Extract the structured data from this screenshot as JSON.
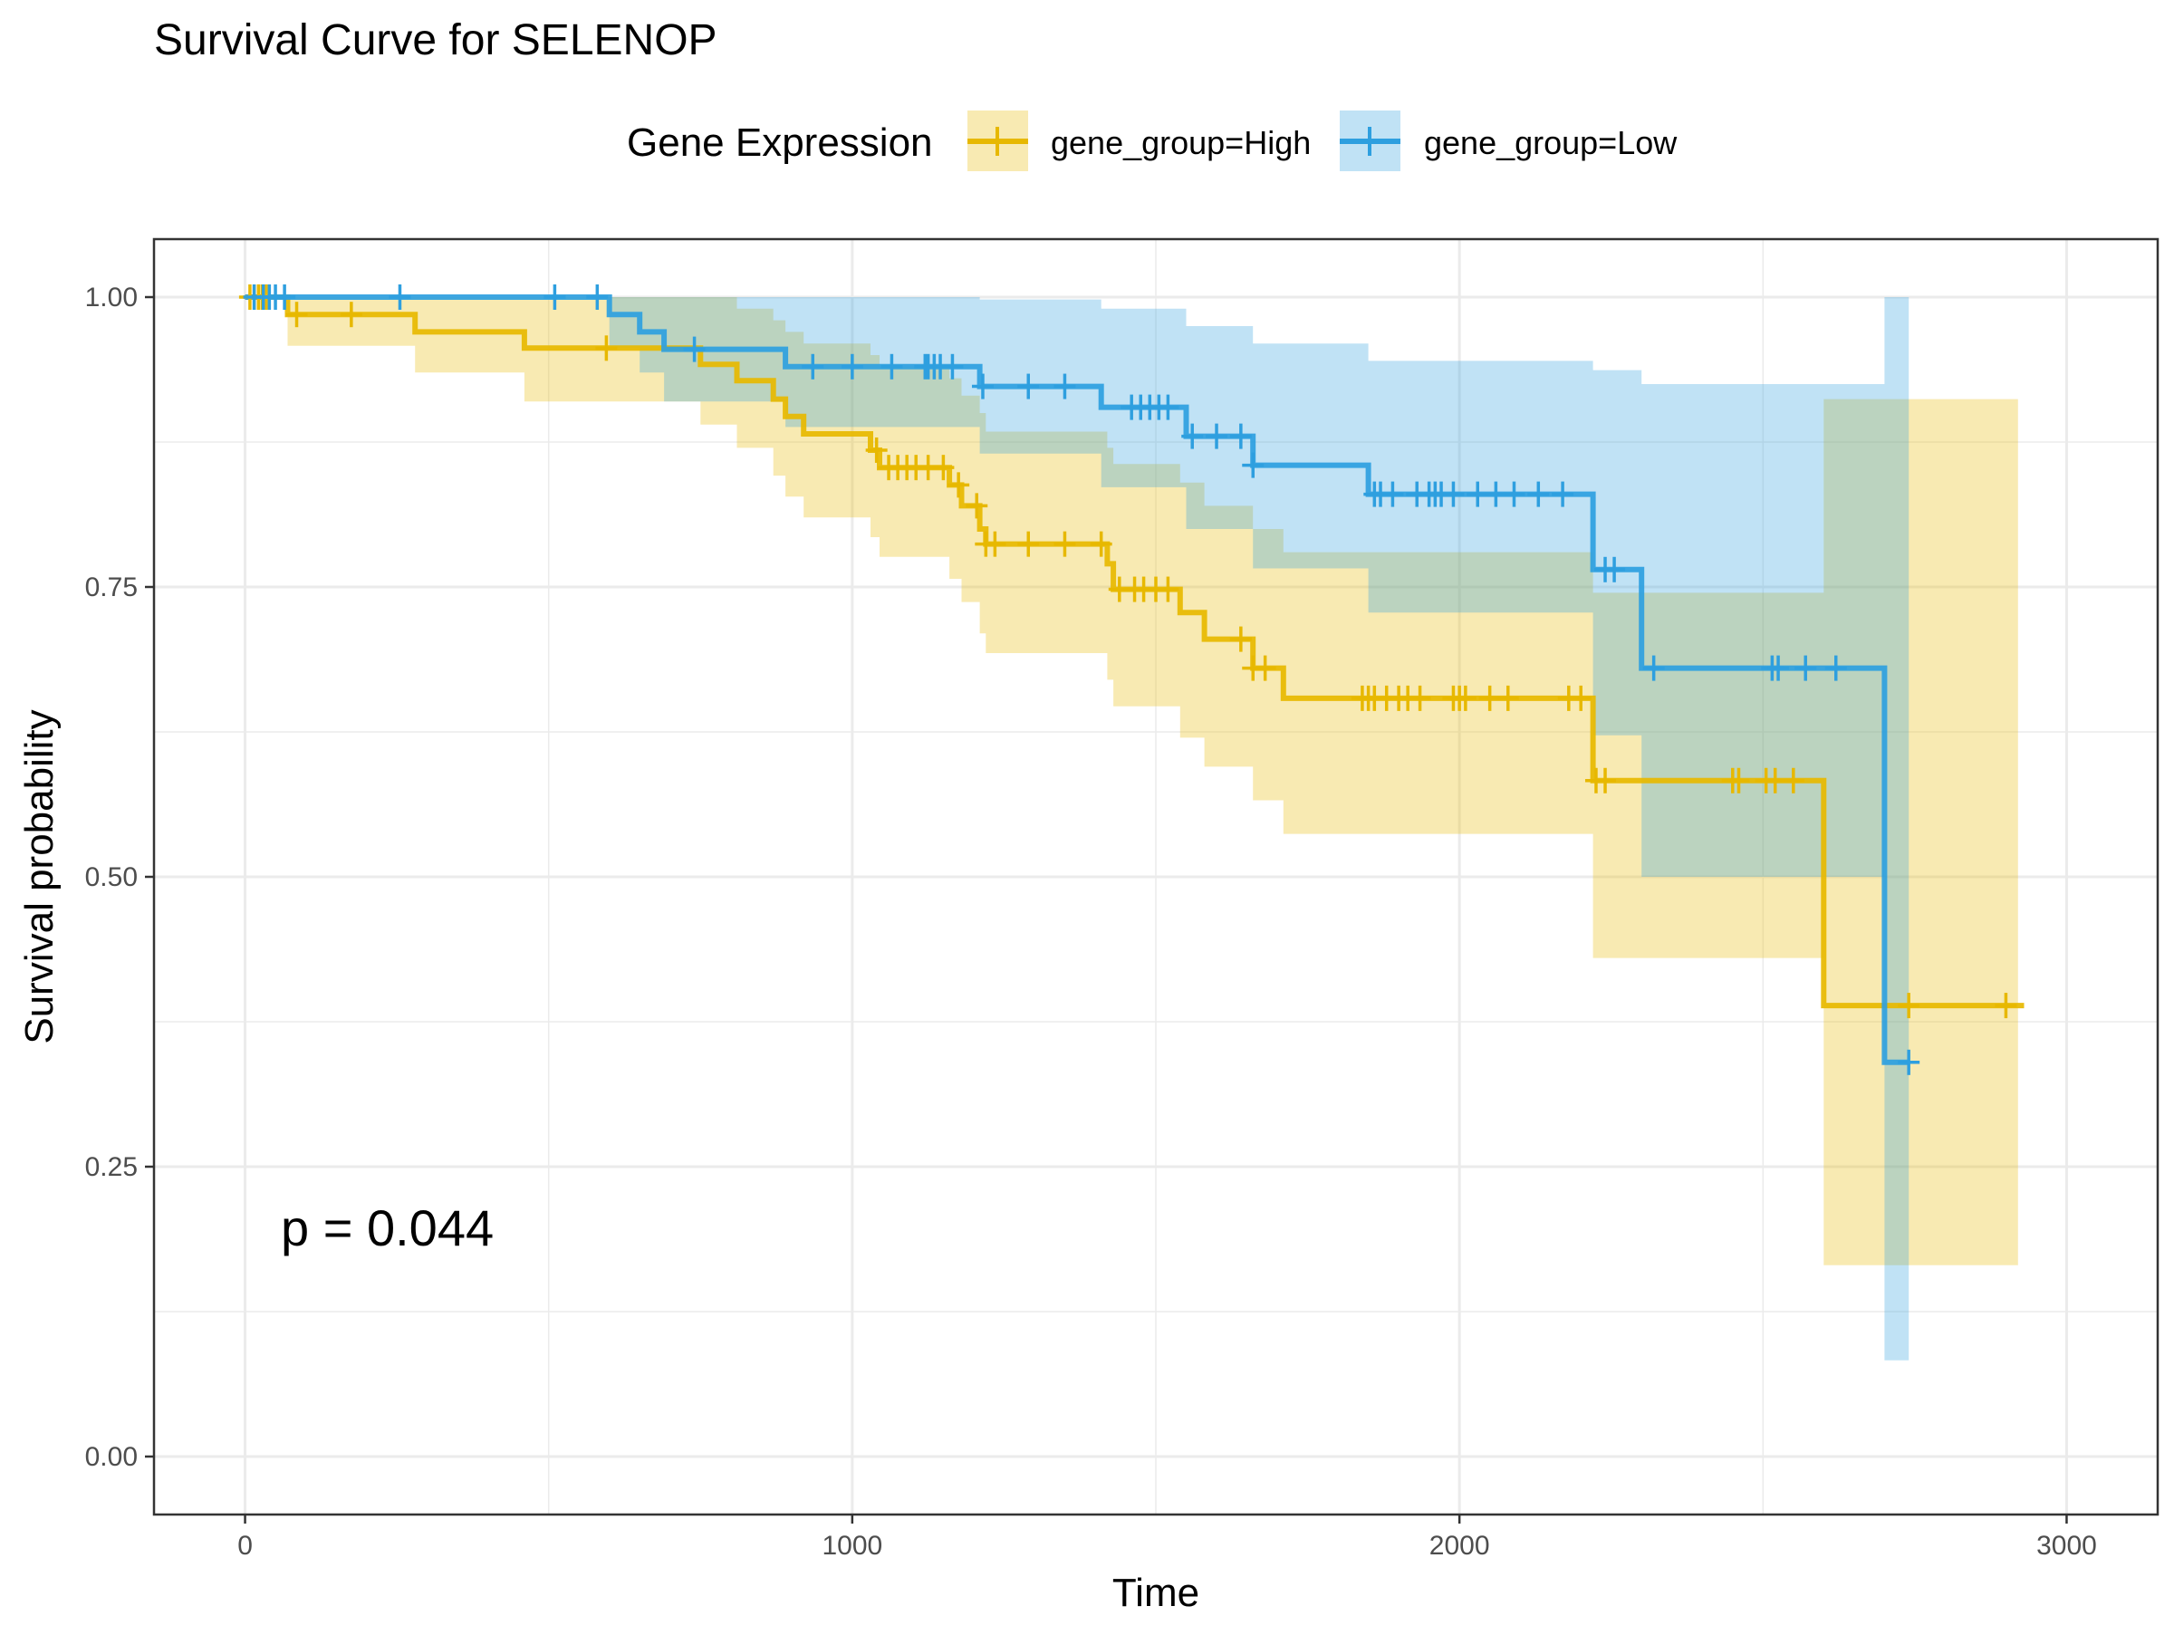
{
  "chart_data": {
    "type": "line",
    "title": "Survival Curve for SELENOP",
    "xlabel": "Time",
    "ylabel": "Survival probability",
    "xlim": [
      -150,
      3150
    ],
    "ylim": [
      -0.05,
      1.05
    ],
    "x_ticks": [
      0,
      1000,
      2000,
      3000
    ],
    "x_tick_labels": [
      "0",
      "1000",
      "2000",
      "3000"
    ],
    "y_ticks": [
      0,
      0.25,
      0.5,
      0.75,
      1
    ],
    "y_tick_labels": [
      "0.00",
      "0.25",
      "0.50",
      "0.75",
      "1.00"
    ],
    "grid": true,
    "legend": {
      "title": "Gene Expression",
      "placement": "top",
      "entries": [
        "gene_group=High",
        "gene_group=Low"
      ]
    },
    "annotation": "p = 0.044",
    "colors": {
      "High": "#E7B800",
      "Low": "#2E9FDF"
    },
    "series": [
      {
        "name": "gene_group=High",
        "color": "#E7B800",
        "steps": [
          [
            0,
            1.0
          ],
          [
            70,
            0.985
          ],
          [
            280,
            0.97
          ],
          [
            460,
            0.956
          ],
          [
            680,
            0.956
          ],
          [
            750,
            0.942
          ],
          [
            810,
            0.928
          ],
          [
            870,
            0.912
          ],
          [
            890,
            0.897
          ],
          [
            920,
            0.882
          ],
          [
            1030,
            0.868
          ],
          [
            1045,
            0.853
          ],
          [
            1160,
            0.838
          ],
          [
            1180,
            0.82
          ],
          [
            1210,
            0.8
          ],
          [
            1220,
            0.787
          ],
          [
            1420,
            0.77
          ],
          [
            1430,
            0.748
          ],
          [
            1540,
            0.728
          ],
          [
            1580,
            0.705
          ],
          [
            1660,
            0.68
          ],
          [
            1710,
            0.654
          ],
          [
            2220,
            0.583
          ],
          [
            2600,
            0.389
          ],
          [
            2930,
            0.389
          ]
        ],
        "ci_steps": [
          [
            0,
            1.0,
            1.0
          ],
          [
            70,
            0.958,
            1.0
          ],
          [
            280,
            0.935,
            1.0
          ],
          [
            460,
            0.91,
            1.0
          ],
          [
            680,
            0.91,
            1.0
          ],
          [
            750,
            0.89,
            1.0
          ],
          [
            810,
            0.87,
            0.99
          ],
          [
            870,
            0.846,
            0.98
          ],
          [
            890,
            0.828,
            0.97
          ],
          [
            920,
            0.81,
            0.96
          ],
          [
            1030,
            0.793,
            0.95
          ],
          [
            1045,
            0.776,
            0.94
          ],
          [
            1160,
            0.757,
            0.93
          ],
          [
            1180,
            0.737,
            0.915
          ],
          [
            1210,
            0.71,
            0.9
          ],
          [
            1220,
            0.693,
            0.884
          ],
          [
            1420,
            0.67,
            0.87
          ],
          [
            1430,
            0.647,
            0.856
          ],
          [
            1540,
            0.62,
            0.84
          ],
          [
            1580,
            0.595,
            0.82
          ],
          [
            1660,
            0.566,
            0.8
          ],
          [
            1710,
            0.537,
            0.78
          ],
          [
            2220,
            0.43,
            0.745
          ],
          [
            2600,
            0.165,
            0.912
          ],
          [
            2920,
            0.165,
            0.912
          ]
        ],
        "censor_times": [
          8,
          15,
          22,
          28,
          35,
          85,
          175,
          595,
          1040,
          1060,
          1075,
          1090,
          1105,
          1125,
          1150,
          1175,
          1205,
          1220,
          1235,
          1290,
          1350,
          1410,
          1440,
          1465,
          1480,
          1500,
          1520,
          1640,
          1660,
          1680,
          1840,
          1850,
          1860,
          1880,
          1900,
          1915,
          1935,
          1990,
          2000,
          2010,
          2050,
          2080,
          2180,
          2200,
          2225,
          2240,
          2450,
          2460,
          2505,
          2520,
          2550,
          2740,
          2900
        ]
      },
      {
        "name": "gene_group=Low",
        "color": "#2E9FDF",
        "steps": [
          [
            0,
            1.0
          ],
          [
            600,
            0.985
          ],
          [
            650,
            0.97
          ],
          [
            690,
            0.955
          ],
          [
            890,
            0.94
          ],
          [
            1210,
            0.923
          ],
          [
            1410,
            0.905
          ],
          [
            1550,
            0.88
          ],
          [
            1660,
            0.855
          ],
          [
            1850,
            0.83
          ],
          [
            2220,
            0.765
          ],
          [
            2300,
            0.68
          ],
          [
            2700,
            0.34
          ],
          [
            2740,
            0.34
          ]
        ],
        "ci_steps": [
          [
            0,
            1.0,
            1.0
          ],
          [
            600,
            0.956,
            1.0
          ],
          [
            650,
            0.935,
            1.0
          ],
          [
            690,
            0.91,
            1.0
          ],
          [
            890,
            0.888,
            1.0
          ],
          [
            1210,
            0.865,
            0.998
          ],
          [
            1410,
            0.836,
            0.99
          ],
          [
            1550,
            0.8,
            0.975
          ],
          [
            1660,
            0.766,
            0.96
          ],
          [
            1850,
            0.728,
            0.945
          ],
          [
            2220,
            0.622,
            0.937
          ],
          [
            2300,
            0.5,
            0.925
          ],
          [
            2610,
            0.5,
            0.925
          ],
          [
            2700,
            0.083,
            1.0
          ],
          [
            2740,
            0.083,
            1.0
          ]
        ],
        "censor_times": [
          15,
          30,
          40,
          50,
          65,
          255,
          510,
          580,
          740,
          935,
          1000,
          1065,
          1120,
          1125,
          1135,
          1145,
          1165,
          1215,
          1290,
          1350,
          1460,
          1475,
          1490,
          1505,
          1520,
          1560,
          1600,
          1640,
          1660,
          1860,
          1870,
          1890,
          1930,
          1950,
          1960,
          1970,
          1990,
          2030,
          2060,
          2090,
          2130,
          2170,
          2240,
          2255,
          2320,
          2515,
          2525,
          2570,
          2620,
          2740
        ]
      }
    ]
  }
}
